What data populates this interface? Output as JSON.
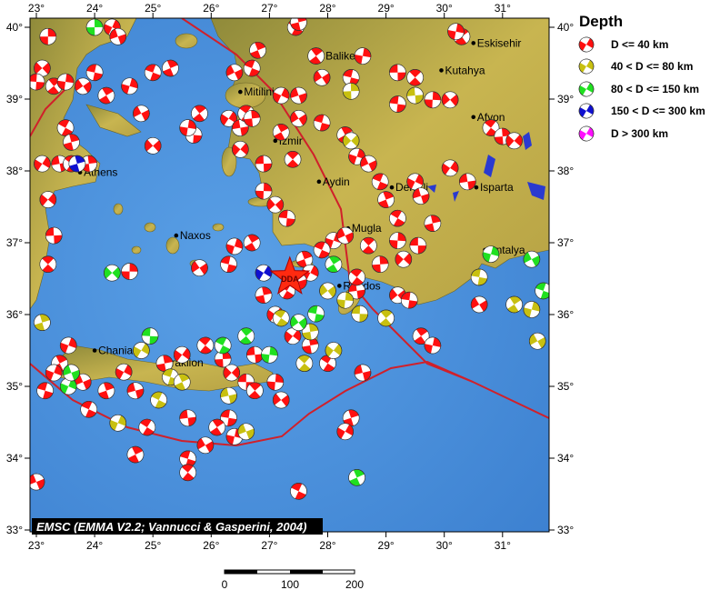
{
  "map": {
    "type": "seismotectonic focal mechanism map",
    "lon_range": [
      22.9,
      31.8
    ],
    "lat_range": [
      32.97,
      40.13
    ],
    "lon_ticks": [
      23,
      24,
      25,
      26,
      27,
      28,
      29,
      30,
      31
    ],
    "lat_ticks": [
      33,
      34,
      35,
      36,
      37,
      38,
      39,
      40
    ],
    "degree_symbol": "°",
    "colors": {
      "sea": "#4a90dc",
      "land": "#b9a84a",
      "plate_boundary": "#d0202a"
    },
    "cities": [
      {
        "name": "Balikesir",
        "lon": 27.9,
        "lat": 39.6
      },
      {
        "name": "Eskisehir",
        "lon": 30.5,
        "lat": 39.78
      },
      {
        "name": "Kutahya",
        "lon": 29.95,
        "lat": 39.4
      },
      {
        "name": "Mitilini",
        "lon": 26.5,
        "lat": 39.1
      },
      {
        "name": "Izmir",
        "lon": 27.1,
        "lat": 38.42
      },
      {
        "name": "Aydin",
        "lon": 27.85,
        "lat": 37.85
      },
      {
        "name": "Denizli",
        "lon": 29.1,
        "lat": 37.77
      },
      {
        "name": "Afyon",
        "lon": 30.5,
        "lat": 38.75
      },
      {
        "name": "Isparta",
        "lon": 30.55,
        "lat": 37.77
      },
      {
        "name": "Mugla",
        "lon": 28.35,
        "lat": 37.2
      },
      {
        "name": "Antalya",
        "lon": 30.7,
        "lat": 36.9
      },
      {
        "name": "Rhodos",
        "lon": 28.2,
        "lat": 36.4
      },
      {
        "name": "Athens",
        "lon": 23.75,
        "lat": 37.98
      },
      {
        "name": "Naxos",
        "lon": 25.4,
        "lat": 37.1
      },
      {
        "name": "Chania",
        "lon": 24.0,
        "lat": 35.5
      },
      {
        "name": "Iraklion",
        "lon": 25.2,
        "lat": 35.33
      }
    ],
    "epicenter": {
      "label": "DDA",
      "lon": 27.35,
      "lat": 36.52,
      "color": "#ff2a10"
    },
    "events": [
      [
        23.2,
        39.87,
        1
      ],
      [
        23.1,
        39.43,
        1
      ],
      [
        23.0,
        39.24,
        1
      ],
      [
        23.3,
        39.18,
        1
      ],
      [
        23.5,
        39.24,
        1
      ],
      [
        23.8,
        39.18,
        1
      ],
      [
        24.0,
        39.37,
        1
      ],
      [
        24.2,
        39.05,
        1
      ],
      [
        24.6,
        39.18,
        1
      ],
      [
        24.8,
        38.8,
        1
      ],
      [
        25.0,
        39.37,
        1
      ],
      [
        25.3,
        39.43,
        1
      ],
      [
        24.3,
        40.0,
        1
      ],
      [
        24.4,
        39.87,
        1
      ],
      [
        23.5,
        38.6,
        1
      ],
      [
        23.6,
        38.4,
        1
      ],
      [
        23.1,
        38.1,
        1
      ],
      [
        23.4,
        38.1,
        1
      ],
      [
        23.6,
        38.1,
        1
      ],
      [
        23.9,
        38.1,
        1
      ],
      [
        23.2,
        37.6,
        1
      ],
      [
        23.3,
        37.1,
        1
      ],
      [
        23.2,
        36.7,
        1
      ],
      [
        24.6,
        36.6,
        1
      ],
      [
        25.0,
        38.35,
        1
      ],
      [
        25.7,
        38.5,
        1
      ],
      [
        25.8,
        38.8,
        1
      ],
      [
        25.6,
        38.6,
        1
      ],
      [
        25.8,
        36.65,
        1
      ],
      [
        26.3,
        36.7,
        1
      ],
      [
        26.7,
        37.0,
        1
      ],
      [
        26.4,
        36.95,
        1
      ],
      [
        26.4,
        39.37,
        1
      ],
      [
        26.7,
        39.43,
        1
      ],
      [
        26.8,
        39.68,
        1
      ],
      [
        27.2,
        39.05,
        1
      ],
      [
        27.5,
        39.05,
        1
      ],
      [
        27.45,
        40.0,
        1
      ],
      [
        27.5,
        40.07,
        1
      ],
      [
        26.3,
        38.73,
        1
      ],
      [
        26.5,
        38.6,
        1
      ],
      [
        26.6,
        38.8,
        1
      ],
      [
        26.7,
        38.73,
        1
      ],
      [
        26.5,
        38.3,
        1
      ],
      [
        26.9,
        38.1,
        1
      ],
      [
        27.4,
        38.16,
        1
      ],
      [
        26.9,
        37.72,
        1
      ],
      [
        27.1,
        37.53,
        1
      ],
      [
        27.3,
        37.34,
        1
      ],
      [
        27.8,
        39.6,
        1
      ],
      [
        28.6,
        39.6,
        1
      ],
      [
        27.9,
        39.3,
        1
      ],
      [
        28.4,
        39.3,
        1
      ],
      [
        28.3,
        38.5,
        1
      ],
      [
        28.5,
        38.2,
        1
      ],
      [
        28.7,
        38.1,
        1
      ],
      [
        28.9,
        37.85,
        1
      ],
      [
        29.0,
        37.6,
        1
      ],
      [
        29.5,
        37.85,
        1
      ],
      [
        29.6,
        37.65,
        1
      ],
      [
        29.2,
        37.34,
        1
      ],
      [
        29.8,
        37.27,
        1
      ],
      [
        30.1,
        38.04,
        1
      ],
      [
        30.4,
        37.85,
        1
      ],
      [
        30.8,
        38.6,
        1
      ],
      [
        31.0,
        38.48,
        1
      ],
      [
        31.2,
        38.42,
        1
      ],
      [
        29.2,
        39.37,
        1
      ],
      [
        29.5,
        39.3,
        1
      ],
      [
        29.8,
        38.99,
        1
      ],
      [
        30.1,
        38.99,
        1
      ],
      [
        29.2,
        38.93,
        1
      ],
      [
        30.3,
        39.87,
        1
      ],
      [
        30.2,
        39.94,
        1
      ],
      [
        27.5,
        38.73,
        1
      ],
      [
        27.9,
        38.67,
        1
      ],
      [
        27.2,
        38.54,
        1
      ],
      [
        28.1,
        37.03,
        1
      ],
      [
        28.3,
        37.1,
        1
      ],
      [
        27.9,
        36.9,
        1
      ],
      [
        27.6,
        36.77,
        1
      ],
      [
        27.7,
        36.58,
        1
      ],
      [
        27.5,
        36.46,
        1
      ],
      [
        27.3,
        36.33,
        1
      ],
      [
        26.9,
        36.27,
        1
      ],
      [
        27.1,
        36.0,
        1
      ],
      [
        28.5,
        36.33,
        1
      ],
      [
        28.5,
        36.52,
        1
      ],
      [
        28.9,
        36.7,
        1
      ],
      [
        29.3,
        36.77,
        1
      ],
      [
        29.55,
        36.96,
        1
      ],
      [
        28.7,
        36.96,
        1
      ],
      [
        29.2,
        37.03,
        1
      ],
      [
        29.2,
        36.27,
        1
      ],
      [
        29.4,
        36.2,
        1
      ],
      [
        29.6,
        35.7,
        1
      ],
      [
        29.8,
        35.57,
        1
      ],
      [
        30.6,
        36.14,
        1
      ],
      [
        23.15,
        34.94,
        1
      ],
      [
        23.4,
        35.32,
        1
      ],
      [
        23.55,
        35.57,
        1
      ],
      [
        23.8,
        35.06,
        1
      ],
      [
        23.9,
        34.68,
        1
      ],
      [
        24.2,
        34.94,
        1
      ],
      [
        24.5,
        35.2,
        1
      ],
      [
        24.7,
        34.94,
        1
      ],
      [
        24.9,
        34.43,
        1
      ],
      [
        25.2,
        35.32,
        1
      ],
      [
        25.5,
        35.44,
        1
      ],
      [
        25.6,
        34.56,
        1
      ],
      [
        25.9,
        35.57,
        1
      ],
      [
        26.2,
        35.38,
        1
      ],
      [
        26.35,
        35.19,
        1
      ],
      [
        26.6,
        35.06,
        1
      ],
      [
        26.75,
        34.94,
        1
      ],
      [
        27.1,
        35.06,
        1
      ],
      [
        27.2,
        34.81,
        1
      ],
      [
        26.3,
        34.56,
        1
      ],
      [
        26.1,
        34.43,
        1
      ],
      [
        26.4,
        34.3,
        1
      ],
      [
        25.9,
        34.18,
        1
      ],
      [
        25.6,
        33.99,
        1
      ],
      [
        24.7,
        34.05,
        1
      ],
      [
        23.3,
        35.19,
        1
      ],
      [
        23.0,
        33.67,
        1
      ],
      [
        27.5,
        33.54,
        1
      ],
      [
        28.4,
        34.56,
        1
      ],
      [
        28.3,
        34.37,
        1
      ],
      [
        28.6,
        35.19,
        1
      ],
      [
        28.0,
        35.32,
        1
      ],
      [
        27.7,
        35.57,
        1
      ],
      [
        27.4,
        35.7,
        1
      ],
      [
        26.75,
        35.44,
        1
      ],
      [
        25.6,
        33.8,
        1
      ],
      [
        28.4,
        39.11,
        2
      ],
      [
        28.4,
        38.42,
        2
      ],
      [
        28.55,
        36.01,
        2
      ],
      [
        29.0,
        35.95,
        2
      ],
      [
        28.3,
        36.2,
        2
      ],
      [
        28.0,
        36.33,
        2
      ],
      [
        30.6,
        36.52,
        2
      ],
      [
        31.2,
        36.14,
        2
      ],
      [
        31.5,
        36.07,
        2
      ],
      [
        31.6,
        35.63,
        2
      ],
      [
        25.3,
        35.13,
        2
      ],
      [
        25.5,
        35.06,
        2
      ],
      [
        24.4,
        34.49,
        2
      ],
      [
        26.6,
        34.37,
        2
      ],
      [
        25.1,
        34.81,
        2
      ],
      [
        23.1,
        35.89,
        2
      ],
      [
        24.8,
        35.5,
        2
      ],
      [
        26.3,
        34.87,
        2
      ],
      [
        27.2,
        35.95,
        2
      ],
      [
        27.7,
        35.76,
        2
      ],
      [
        28.1,
        35.5,
        2
      ],
      [
        29.5,
        39.05,
        2
      ],
      [
        27.6,
        35.32,
        2
      ],
      [
        24.0,
        40.0,
        3
      ],
      [
        24.3,
        36.58,
        3
      ],
      [
        24.95,
        35.7,
        3
      ],
      [
        26.6,
        35.7,
        3
      ],
      [
        27.0,
        35.44,
        3
      ],
      [
        27.5,
        35.89,
        3
      ],
      [
        27.8,
        36.01,
        3
      ],
      [
        28.1,
        36.7,
        3
      ],
      [
        30.8,
        36.84,
        3
      ],
      [
        31.5,
        36.77,
        3
      ],
      [
        31.7,
        36.33,
        3
      ],
      [
        28.5,
        33.73,
        3
      ],
      [
        23.55,
        35.0,
        3
      ],
      [
        23.6,
        35.19,
        3
      ],
      [
        26.2,
        35.57,
        3
      ],
      [
        23.7,
        38.1,
        4
      ],
      [
        26.9,
        36.58,
        4
      ]
    ]
  },
  "legend": {
    "title": "Depth",
    "items": [
      {
        "label": "D <= 40 km",
        "color": "#ff1010"
      },
      {
        "label": "40 < D <= 80 km",
        "color": "#c8c010"
      },
      {
        "label": "80 < D <= 150 km",
        "color": "#20e020"
      },
      {
        "label": "150 < D <= 300 km",
        "color": "#1010d0"
      },
      {
        "label": "D > 300 km",
        "color": "#ff10ff"
      }
    ]
  },
  "credit": "EMSC (EMMA V2.2; Vannucci & Gasperini, 2004)",
  "scale_bar": {
    "labels": [
      "0",
      "100",
      "200"
    ]
  }
}
